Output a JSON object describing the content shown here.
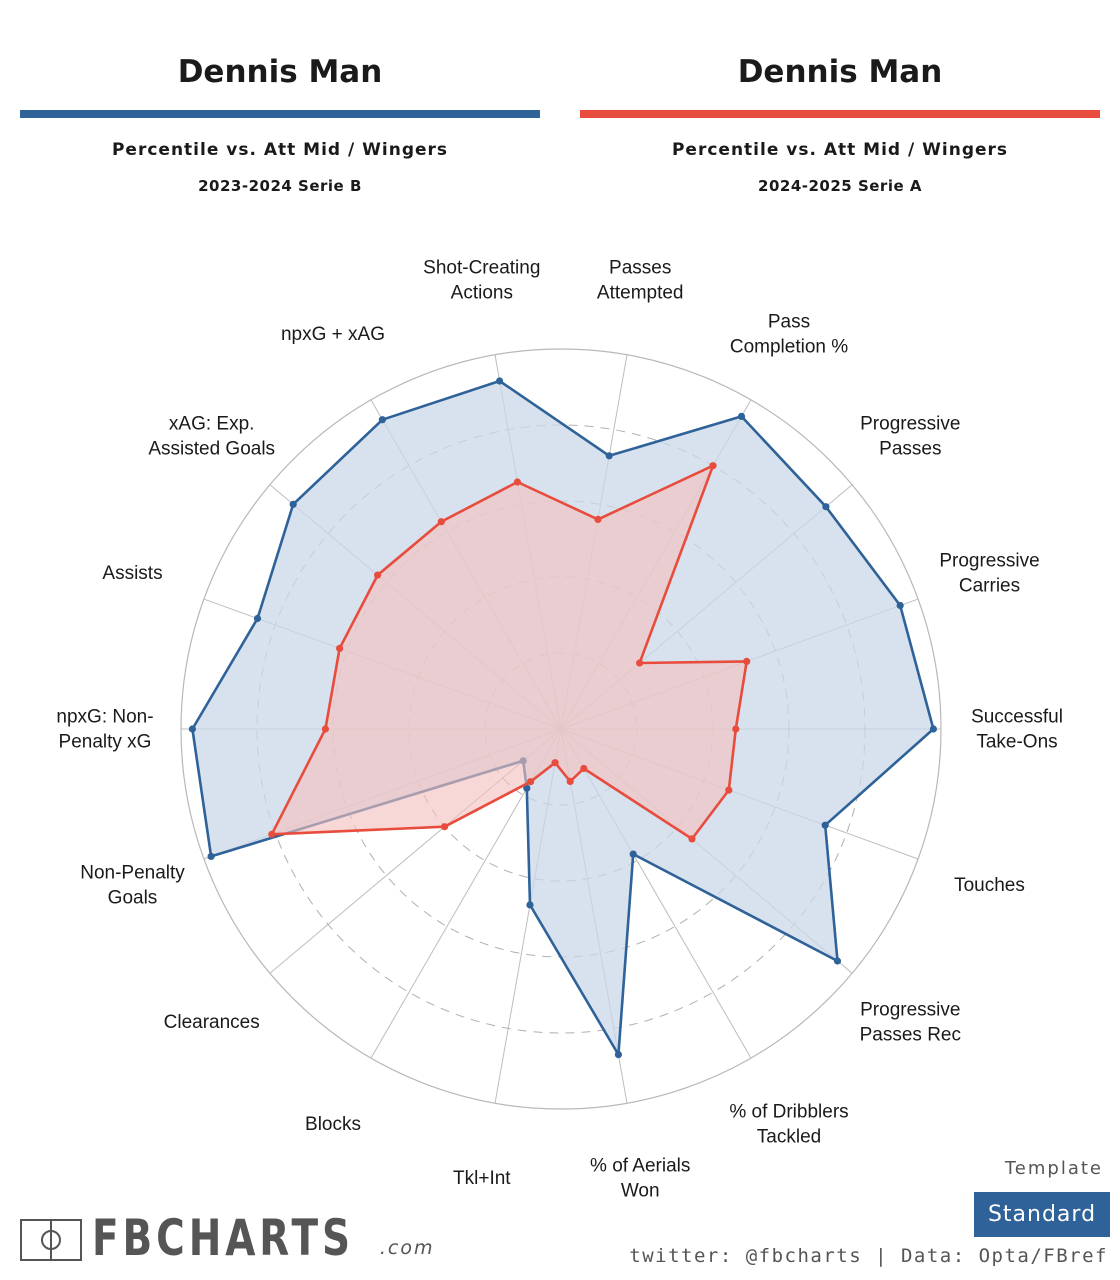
{
  "header": {
    "left": {
      "player": "Dennis Man",
      "comparison": "Percentile vs. Att Mid / Wingers",
      "season": "2023-2024 Serie B"
    },
    "right": {
      "player": "Dennis Man",
      "comparison": "Percentile vs. Att Mid / Wingers",
      "season": "2024-2025 Serie A"
    }
  },
  "colors": {
    "blue": "#2e6298",
    "red": "#e84c3d",
    "blue_fill": "#c9d8e8",
    "red_fill": "#f4c0bd"
  },
  "chart_data": {
    "type": "radar",
    "rlim": [
      0,
      100
    ],
    "grid": true,
    "axes": [
      [
        "Passes",
        "Attempted"
      ],
      [
        "Pass",
        "Completion %"
      ],
      [
        "Progressive",
        "Passes"
      ],
      [
        "Progressive",
        "Carries"
      ],
      [
        "Successful",
        "Take-Ons"
      ],
      [
        "Touches"
      ],
      [
        "Progressive",
        "Passes Rec"
      ],
      [
        "% of Dribblers",
        "Tackled"
      ],
      [
        "% of Aerials",
        "Won"
      ],
      [
        "Tkl+Int"
      ],
      [
        "Blocks"
      ],
      [
        "Clearances"
      ],
      [
        "Non-Penalty",
        "Goals"
      ],
      [
        "npxG: Non-",
        "Penalty xG"
      ],
      [
        "Assists"
      ],
      [
        "xAG: Exp.",
        "Assisted Goals"
      ],
      [
        "npxG + xAG"
      ],
      [
        "Shot-Creating",
        "Actions"
      ]
    ],
    "series": [
      {
        "season": "2023-2024 Serie B",
        "color": "blue",
        "values": [
          73,
          95,
          91,
          95,
          98,
          74,
          95,
          38,
          87,
          47,
          18,
          13,
          98,
          97,
          85,
          92,
          94,
          93
        ]
      },
      {
        "season": "2024-2025 Serie A",
        "color": "red",
        "values": [
          56,
          80,
          27,
          52,
          46,
          47,
          45,
          12,
          14,
          9,
          16,
          40,
          81,
          62,
          62,
          63,
          63,
          66
        ]
      }
    ]
  },
  "footer": {
    "template_label": "Template",
    "template_value": "Standard",
    "credit": "twitter: @fbcharts | Data: Opta/FBref",
    "logo_main": "FBCHARTS",
    "logo_suffix": ".com"
  }
}
